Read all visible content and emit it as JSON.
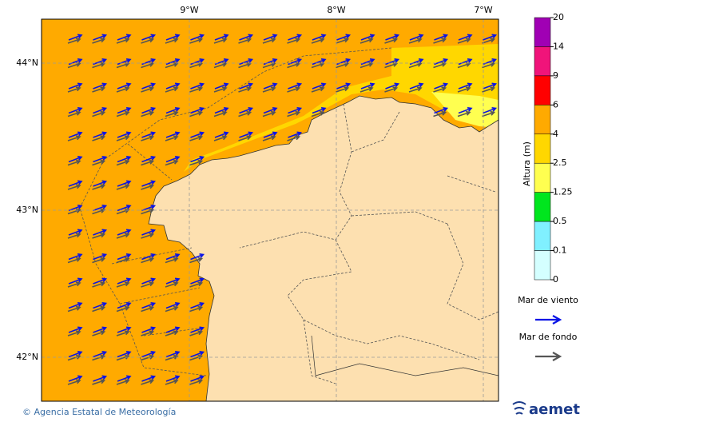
{
  "map": {
    "lon_labels": [
      "9°W",
      "8°W",
      "7°W"
    ],
    "lat_labels": [
      "44°N",
      "43°N",
      "42°N"
    ]
  },
  "colorbar": {
    "title": "Altura (m)",
    "ticks": [
      "20",
      "14",
      "9",
      "6",
      "4",
      "2.5",
      "1.25",
      "0.5",
      "0.1",
      "0"
    ],
    "colors": [
      "#a000b4",
      "#f0147a",
      "#ff0000",
      "#ffaa00",
      "#ffd700",
      "#ffff50",
      "#00e61e",
      "#80f0ff",
      "#d4ffff"
    ]
  },
  "legend": [
    {
      "label": "Mar de viento",
      "color": "#0a14e6"
    },
    {
      "label": "Mar de fondo",
      "color": "#555555"
    }
  ],
  "footer": {
    "credit": "© Agencia Estatal de Meteorología",
    "logo": "aemet"
  }
}
